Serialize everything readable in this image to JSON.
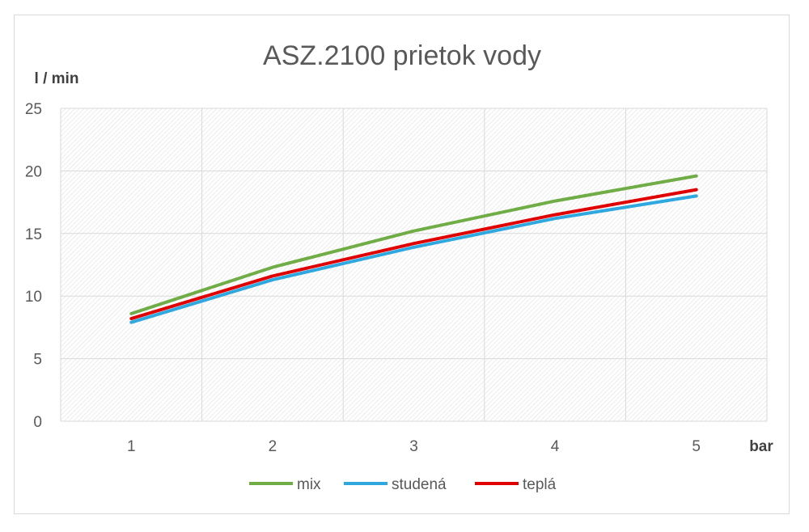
{
  "chart_data": {
    "type": "line",
    "title": "ASZ.2100 prietok vody",
    "xlabel": "bar",
    "ylabel": "l / min",
    "categories": [
      "1",
      "2",
      "3",
      "4",
      "5"
    ],
    "x": [
      1,
      2,
      3,
      4,
      5
    ],
    "ylim": [
      0,
      25
    ],
    "yticks": [
      0,
      5,
      10,
      15,
      20,
      25
    ],
    "grid": true,
    "legend": "bottom",
    "series": [
      {
        "name": "mix",
        "color": "#70ad47",
        "values": [
          8.6,
          12.3,
          15.2,
          17.6,
          19.6
        ]
      },
      {
        "name": "studená",
        "color": "#2fa8e0",
        "values": [
          7.9,
          11.3,
          13.9,
          16.2,
          18.0
        ]
      },
      {
        "name": "teplá",
        "color": "#e00000",
        "values": [
          8.2,
          11.6,
          14.2,
          16.5,
          18.5
        ]
      }
    ]
  }
}
